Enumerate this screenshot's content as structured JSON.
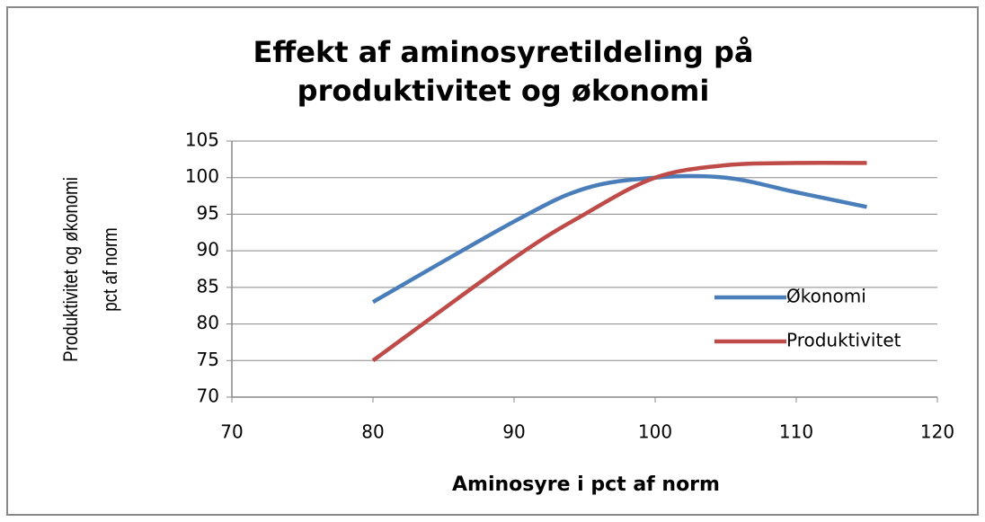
{
  "chart_data": {
    "type": "line",
    "title": [
      "Effekt af aminosyretildeling på",
      "produktivitet og økonomi"
    ],
    "x_label": "Aminosyre i pct af norm",
    "y_label": [
      "Produktivitet og økonomi",
      "pct af norm"
    ],
    "x": [
      80,
      90,
      95,
      100,
      105,
      110,
      115
    ],
    "series": [
      {
        "name": "Økonomi",
        "color": "#4a7ebb",
        "values": [
          83,
          94,
          98.5,
          100,
          100,
          98,
          96
        ]
      },
      {
        "name": "Produktivitet",
        "color": "#be4b48",
        "values": [
          75,
          89,
          95,
          100,
          101.7,
          102,
          102
        ]
      }
    ],
    "xlim": [
      70,
      120
    ],
    "xticks": [
      70,
      80,
      90,
      100,
      110,
      120
    ],
    "ylim": [
      70,
      105
    ],
    "yticks": [
      70,
      75,
      80,
      85,
      90,
      95,
      100,
      105
    ],
    "grid": true,
    "legend": "right",
    "smooth": true
  }
}
